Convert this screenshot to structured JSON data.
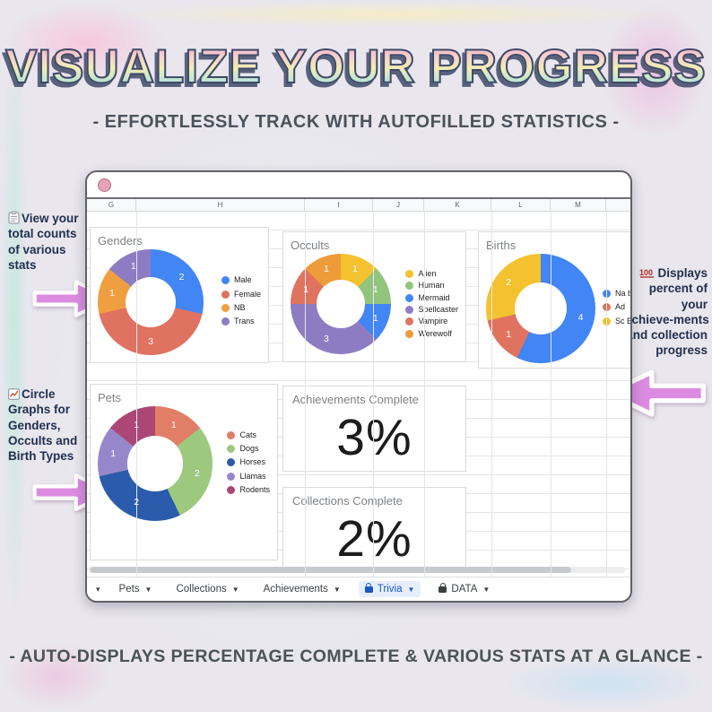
{
  "header": {
    "title": "VISUALIZE YOUR PROGRESS",
    "subtitle": "- EFFORTLESSLY TRACK WITH AUTOFILLED STATISTICS -"
  },
  "footer": {
    "caption": "- AUTO-DISPLAYS PERCENTAGE COMPLETE & VARIOUS STATS AT A GLANCE -"
  },
  "annotations": {
    "left_top": {
      "icon": "clipboard-emoji",
      "text": "View your total counts of various stats"
    },
    "left_bottom": {
      "icon": "chart-increasing-emoji",
      "text": "Circle Graphs for Genders, Occults and Birth Types"
    },
    "right": {
      "icon": "hundred-points-emoji",
      "text": "Displays percent of your achieve‑ments and collection progress"
    }
  },
  "window": {
    "column_headers": [
      "G",
      "H",
      "I",
      "J",
      "K",
      "L",
      "M"
    ],
    "tabs": {
      "nav_chevron": "▾",
      "items": [
        {
          "label": "Pets",
          "locked": false,
          "active": false
        },
        {
          "label": "Collections",
          "locked": false,
          "active": false
        },
        {
          "label": "Achievements",
          "locked": false,
          "active": false
        },
        {
          "label": "Trivia",
          "locked": true,
          "active": true
        },
        {
          "label": "DATA",
          "locked": true,
          "active": false
        }
      ]
    }
  },
  "chart_data": [
    {
      "type": "pie",
      "donut": true,
      "title": "Genders",
      "legend_position": "right",
      "labels": [
        "Male",
        "Female",
        "NB",
        "Trans"
      ],
      "values": [
        2,
        3,
        1,
        1
      ],
      "colors": [
        "#4285f4",
        "#e07261",
        "#ef9f3f",
        "#8e7cc3"
      ]
    },
    {
      "type": "pie",
      "donut": true,
      "title": "Occults",
      "legend_position": "right",
      "labels": [
        "Alien",
        "Human",
        "Mermaid",
        "Spellcaster",
        "Vampire",
        "Werewolf"
      ],
      "values": [
        1,
        1,
        1,
        3,
        1,
        1
      ],
      "colors": [
        "#f3c22e",
        "#93c47d",
        "#4285f4",
        "#8e7cc3",
        "#e0735f",
        "#ee9b3a"
      ]
    },
    {
      "type": "pie",
      "donut": true,
      "title": "Births",
      "legend_position": "right",
      "labels": [
        "Na bo",
        "Ad",
        "Sc Ba"
      ],
      "values": [
        4,
        1,
        2
      ],
      "colors": [
        "#4285f4",
        "#e0735f",
        "#f3c22e"
      ],
      "note": "legend clipped by window edge"
    },
    {
      "type": "pie",
      "donut": true,
      "title": "Pets",
      "legend_position": "right",
      "labels": [
        "Cats",
        "Dogs",
        "Horses",
        "Llamas",
        "Rodents"
      ],
      "values": [
        1,
        2,
        2,
        1,
        1
      ],
      "colors": [
        "#e07e67",
        "#9dc97f",
        "#2a5cab",
        "#9687cb",
        "#ab4777"
      ]
    },
    {
      "type": "scorecard",
      "title": "Achievements Complete",
      "value": "3%"
    },
    {
      "type": "scorecard",
      "title": "Collections Complete",
      "value": "2%"
    }
  ],
  "scorecards": [
    {
      "title": "Achievements Complete",
      "value": "3%"
    },
    {
      "title": "Collections Complete",
      "value": "2%"
    }
  ],
  "colors": {
    "arrow_pink": "#dc8ce0",
    "active_tab_text": "#1a56c9",
    "active_tab_bg": "#e6eefb",
    "window_border": "#606166",
    "titlebar_dot": "#e7a2b6",
    "annotation_text": "#21304e",
    "title_outline": "#3e4967"
  }
}
